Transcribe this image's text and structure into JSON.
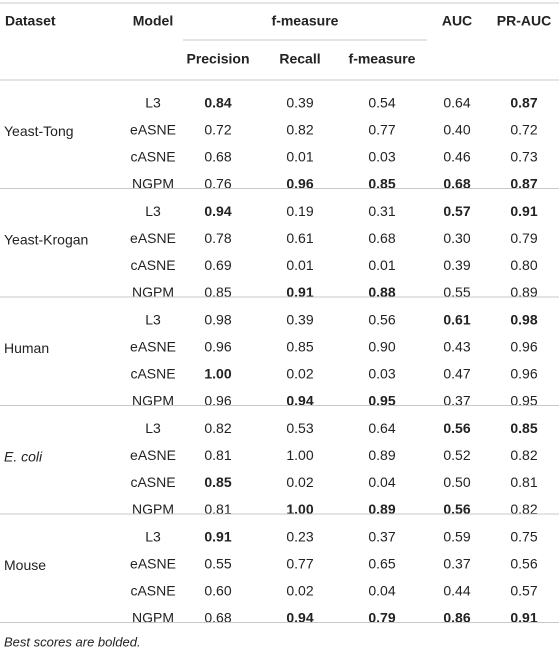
{
  "table": {
    "header": {
      "dataset": "Dataset",
      "model": "Model",
      "group": "f-measure",
      "columns": [
        "Precision",
        "Recall",
        "f-measure"
      ],
      "auc": "AUC",
      "prauc": "PR-AUC"
    },
    "groups": [
      {
        "dataset": "Yeast-Tong",
        "italic": false,
        "rows": [
          {
            "model": "L3",
            "cells": [
              "0.84",
              "0.39",
              "0.54",
              "0.64",
              "0.87"
            ],
            "bold": [
              true,
              false,
              false,
              false,
              true
            ]
          },
          {
            "model": "eASNE",
            "cells": [
              "0.72",
              "0.82",
              "0.77",
              "0.40",
              "0.72"
            ],
            "bold": [
              false,
              false,
              false,
              false,
              false
            ]
          },
          {
            "model": "cASNE",
            "cells": [
              "0.68",
              "0.01",
              "0.03",
              "0.46",
              "0.73"
            ],
            "bold": [
              false,
              false,
              false,
              false,
              false
            ]
          },
          {
            "model": "NGPM",
            "cells": [
              "0.76",
              "0.96",
              "0.85",
              "0.68",
              "0.87"
            ],
            "bold": [
              false,
              true,
              true,
              true,
              true
            ]
          }
        ]
      },
      {
        "dataset": "Yeast-Krogan",
        "italic": false,
        "rows": [
          {
            "model": "L3",
            "cells": [
              "0.94",
              "0.19",
              "0.31",
              "0.57",
              "0.91"
            ],
            "bold": [
              true,
              false,
              false,
              true,
              true
            ]
          },
          {
            "model": "eASNE",
            "cells": [
              "0.78",
              "0.61",
              "0.68",
              "0.30",
              "0.79"
            ],
            "bold": [
              false,
              false,
              false,
              false,
              false
            ]
          },
          {
            "model": "cASNE",
            "cells": [
              "0.69",
              "0.01",
              "0.01",
              "0.39",
              "0.80"
            ],
            "bold": [
              false,
              false,
              false,
              false,
              false
            ]
          },
          {
            "model": "NGPM",
            "cells": [
              "0.85",
              "0.91",
              "0.88",
              "0.55",
              "0.89"
            ],
            "bold": [
              false,
              true,
              true,
              false,
              false
            ]
          }
        ]
      },
      {
        "dataset": "Human",
        "italic": false,
        "rows": [
          {
            "model": "L3",
            "cells": [
              "0.98",
              "0.39",
              "0.56",
              "0.61",
              "0.98"
            ],
            "bold": [
              false,
              false,
              false,
              true,
              true
            ]
          },
          {
            "model": "eASNE",
            "cells": [
              "0.96",
              "0.85",
              "0.90",
              "0.43",
              "0.96"
            ],
            "bold": [
              false,
              false,
              false,
              false,
              false
            ]
          },
          {
            "model": "cASNE",
            "cells": [
              "1.00",
              "0.02",
              "0.03",
              "0.47",
              "0.96"
            ],
            "bold": [
              true,
              false,
              false,
              false,
              false
            ]
          },
          {
            "model": "NGPM",
            "cells": [
              "0.96",
              "0.94",
              "0.95",
              "0.37",
              "0.95"
            ],
            "bold": [
              false,
              true,
              true,
              false,
              false
            ]
          }
        ]
      },
      {
        "dataset": "E. coli",
        "italic": true,
        "rows": [
          {
            "model": "L3",
            "cells": [
              "0.82",
              "0.53",
              "0.64",
              "0.56",
              "0.85"
            ],
            "bold": [
              false,
              false,
              false,
              true,
              true
            ]
          },
          {
            "model": "eASNE",
            "cells": [
              "0.81",
              "1.00",
              "0.89",
              "0.52",
              "0.82"
            ],
            "bold": [
              false,
              false,
              false,
              false,
              false
            ]
          },
          {
            "model": "cASNE",
            "cells": [
              "0.85",
              "0.02",
              "0.04",
              "0.50",
              "0.81"
            ],
            "bold": [
              true,
              false,
              false,
              false,
              false
            ]
          },
          {
            "model": "NGPM",
            "cells": [
              "0.81",
              "1.00",
              "0.89",
              "0.56",
              "0.82"
            ],
            "bold": [
              false,
              true,
              true,
              true,
              false
            ]
          }
        ]
      },
      {
        "dataset": "Mouse",
        "italic": false,
        "rows": [
          {
            "model": "L3",
            "cells": [
              "0.91",
              "0.23",
              "0.37",
              "0.59",
              "0.75"
            ],
            "bold": [
              true,
              false,
              false,
              false,
              false
            ]
          },
          {
            "model": "eASNE",
            "cells": [
              "0.55",
              "0.77",
              "0.65",
              "0.37",
              "0.56"
            ],
            "bold": [
              false,
              false,
              false,
              false,
              false
            ]
          },
          {
            "model": "cASNE",
            "cells": [
              "0.60",
              "0.02",
              "0.04",
              "0.44",
              "0.57"
            ],
            "bold": [
              false,
              false,
              false,
              false,
              false
            ]
          },
          {
            "model": "NGPM",
            "cells": [
              "0.68",
              "0.94",
              "0.79",
              "0.86",
              "0.91"
            ],
            "bold": [
              false,
              true,
              true,
              true,
              true
            ]
          }
        ]
      }
    ],
    "footnote": "Best scores are bolded."
  }
}
